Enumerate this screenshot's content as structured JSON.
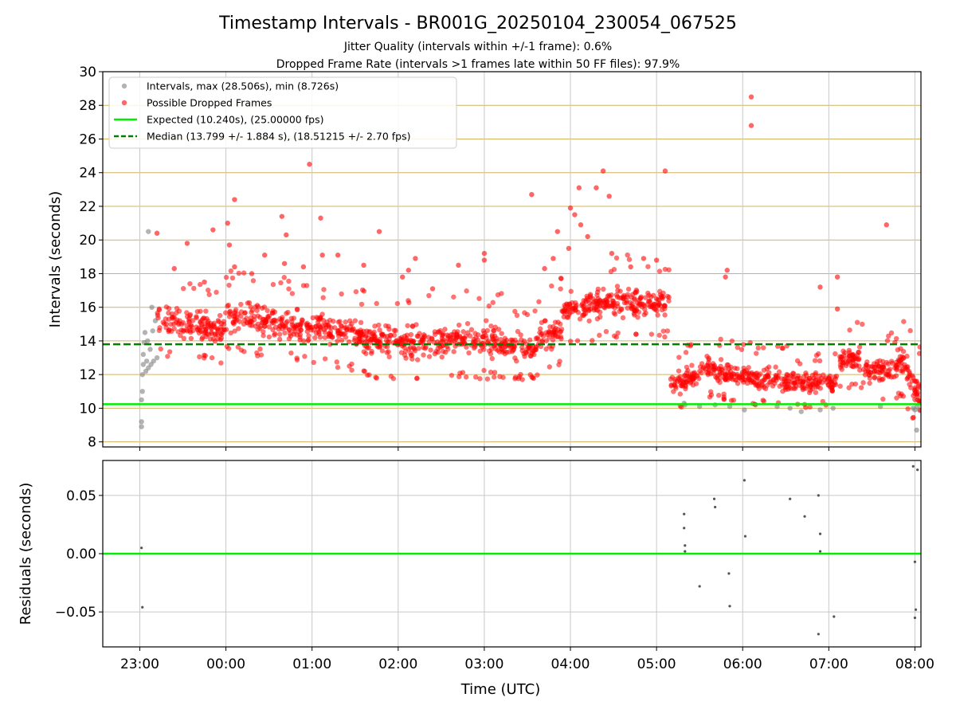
{
  "title": "Timestamp Intervals - BR001G_20250104_230054_067525",
  "subtitle_1": "Jitter Quality (intervals within +/-1 frame): 0.6%",
  "subtitle_2": "Dropped Frame Rate (intervals >1 frames late within 50 FF files): 97.9%",
  "colors": {
    "intervals": "#808080",
    "dropped": "#ff0000",
    "expected": "#00ee00",
    "median": "#008000",
    "hgrid": "#d2b35c",
    "vgrid": "#c8c8c8"
  },
  "chart_data": [
    {
      "type": "scatter",
      "name": "intervals",
      "xlabel": "",
      "ylabel": "Intervals (seconds)",
      "ylim": [
        7.7,
        30
      ],
      "yticks": [
        8,
        10,
        12,
        14,
        16,
        18,
        20,
        22,
        24,
        26,
        28,
        30
      ],
      "xlim_hours": [
        22.57,
        32.07
      ],
      "xticks": [
        {
          "h": 23,
          "label": "23:00"
        },
        {
          "h": 24,
          "label": "00:00"
        },
        {
          "h": 25,
          "label": "01:00"
        },
        {
          "h": 26,
          "label": "02:00"
        },
        {
          "h": 27,
          "label": "03:00"
        },
        {
          "h": 28,
          "label": "04:00"
        },
        {
          "h": 29,
          "label": "05:00"
        },
        {
          "h": 30,
          "label": "06:00"
        },
        {
          "h": 31,
          "label": "07:00"
        },
        {
          "h": 32,
          "label": "08:00"
        }
      ],
      "grid": "horizontal-and-vertical",
      "legend_position": "upper-left",
      "legend": [
        {
          "key": "intervals",
          "label": "Intervals, max (28.506s), min (8.726s)"
        },
        {
          "key": "dropped",
          "label": "Possible Dropped Frames"
        },
        {
          "key": "expected",
          "label": "Expected (10.240s), (25.00000 fps)"
        },
        {
          "key": "median",
          "label": "Median (13.799 +/- 1.884 s), (18.51215 +/- 2.70 fps)"
        }
      ],
      "expected": 10.24,
      "median": 13.799,
      "series": [
        {
          "name": "Intervals, max (28.506s), min (8.726s)",
          "marker": "gray",
          "points": [
            [
              23.02,
              8.9
            ],
            [
              23.02,
              9.2
            ],
            [
              23.02,
              10.5
            ],
            [
              23.03,
              11.0
            ],
            [
              23.03,
              12.0
            ],
            [
              23.04,
              12.6
            ],
            [
              23.04,
              13.2
            ],
            [
              23.05,
              13.9
            ],
            [
              23.06,
              14.5
            ],
            [
              23.07,
              12.2
            ],
            [
              23.08,
              12.8
            ],
            [
              23.09,
              14.0
            ],
            [
              23.1,
              12.4
            ],
            [
              23.1,
              20.5
            ],
            [
              23.12,
              13.5
            ],
            [
              23.13,
              12.6
            ],
            [
              23.14,
              16.0
            ],
            [
              23.15,
              14.6
            ],
            [
              23.16,
              12.8
            ],
            [
              23.18,
              15.2
            ],
            [
              23.2,
              13.0
            ],
            [
              29.32,
              10.3
            ],
            [
              29.33,
              10.2
            ],
            [
              29.5,
              10.1
            ],
            [
              29.68,
              10.2
            ],
            [
              29.85,
              10.1
            ],
            [
              30.02,
              9.9
            ],
            [
              30.15,
              10.2
            ],
            [
              30.4,
              10.1
            ],
            [
              30.55,
              10.0
            ],
            [
              30.68,
              9.8
            ],
            [
              30.9,
              9.9
            ],
            [
              31.05,
              10.0
            ],
            [
              31.6,
              10.1
            ],
            [
              31.98,
              10.0
            ],
            [
              32.0,
              9.9
            ],
            [
              32.02,
              8.7
            ],
            [
              32.03,
              10.1
            ],
            [
              32.05,
              9.9
            ]
          ]
        },
        {
          "name": "Possible Dropped Frames",
          "marker": "red",
          "outliers": [
            [
              23.2,
              20.4
            ],
            [
              23.4,
              18.3
            ],
            [
              23.55,
              19.8
            ],
            [
              23.75,
              17.5
            ],
            [
              23.85,
              20.6
            ],
            [
              24.02,
              21.0
            ],
            [
              24.04,
              19.7
            ],
            [
              24.1,
              22.4
            ],
            [
              24.1,
              18.4
            ],
            [
              24.3,
              18.0
            ],
            [
              24.45,
              19.1
            ],
            [
              24.65,
              21.4
            ],
            [
              24.68,
              18.6
            ],
            [
              24.7,
              20.3
            ],
            [
              24.9,
              18.4
            ],
            [
              24.97,
              24.5
            ],
            [
              25.1,
              21.3
            ],
            [
              25.12,
              19.1
            ],
            [
              25.3,
              19.1
            ],
            [
              25.6,
              18.5
            ],
            [
              25.78,
              20.5
            ],
            [
              26.05,
              17.8
            ],
            [
              26.12,
              18.2
            ],
            [
              26.2,
              18.9
            ],
            [
              26.4,
              17.1
            ],
            [
              26.7,
              18.5
            ],
            [
              27.0,
              19.2
            ],
            [
              27.0,
              18.8
            ],
            [
              27.55,
              22.7
            ],
            [
              27.7,
              18.3
            ],
            [
              27.8,
              18.9
            ],
            [
              27.85,
              20.5
            ],
            [
              27.98,
              19.5
            ],
            [
              28.0,
              21.9
            ],
            [
              28.05,
              21.5
            ],
            [
              28.1,
              23.1
            ],
            [
              28.12,
              20.9
            ],
            [
              28.2,
              20.2
            ],
            [
              28.3,
              23.1
            ],
            [
              28.38,
              24.1
            ],
            [
              28.45,
              22.6
            ],
            [
              28.48,
              19.2
            ],
            [
              28.7,
              18.4
            ],
            [
              28.85,
              18.9
            ],
            [
              29.0,
              18.8
            ],
            [
              29.1,
              24.1
            ],
            [
              29.8,
              17.8
            ],
            [
              29.82,
              18.2
            ],
            [
              30.1,
              28.5
            ],
            [
              30.1,
              26.8
            ],
            [
              30.9,
              17.2
            ],
            [
              31.1,
              17.8
            ],
            [
              31.1,
              15.9
            ],
            [
              31.67,
              20.9
            ]
          ],
          "bands": [
            {
              "x0": 23.2,
              "x1": 24.0,
              "y0": 15.3,
              "y1": 14.7,
              "spread": 1.2,
              "n": 150
            },
            {
              "x0": 24.0,
              "x1": 25.0,
              "y0": 15.5,
              "y1": 14.8,
              "spread": 1.2,
              "n": 190
            },
            {
              "x0": 25.0,
              "x1": 25.6,
              "y0": 14.8,
              "y1": 14.3,
              "spread": 1.2,
              "n": 120
            },
            {
              "x0": 25.6,
              "x1": 26.6,
              "y0": 14.1,
              "y1": 13.8,
              "spread": 1.3,
              "n": 190
            },
            {
              "x0": 26.6,
              "x1": 27.2,
              "y0": 14.2,
              "y1": 14.0,
              "spread": 1.3,
              "n": 120
            },
            {
              "x0": 27.2,
              "x1": 27.6,
              "y0": 13.6,
              "y1": 13.7,
              "spread": 1.1,
              "n": 80
            },
            {
              "x0": 27.6,
              "x1": 27.9,
              "y0": 14.2,
              "y1": 14.8,
              "spread": 1.3,
              "n": 60
            },
            {
              "x0": 27.9,
              "x1": 28.6,
              "y0": 15.9,
              "y1": 16.4,
              "spread": 1.2,
              "n": 140
            },
            {
              "x0": 28.6,
              "x1": 29.15,
              "y0": 16.4,
              "y1": 16.3,
              "spread": 1.2,
              "n": 110
            },
            {
              "x0": 29.15,
              "x1": 29.5,
              "y0": 11.6,
              "y1": 11.8,
              "spread": 0.9,
              "n": 70
            },
            {
              "x0": 29.5,
              "x1": 30.0,
              "y0": 12.4,
              "y1": 11.9,
              "spread": 0.9,
              "n": 100
            },
            {
              "x0": 30.0,
              "x1": 30.6,
              "y0": 11.9,
              "y1": 11.6,
              "spread": 0.9,
              "n": 120
            },
            {
              "x0": 30.6,
              "x1": 31.1,
              "y0": 11.4,
              "y1": 11.6,
              "spread": 0.8,
              "n": 100
            },
            {
              "x0": 31.1,
              "x1": 31.4,
              "y0": 13.0,
              "y1": 12.8,
              "spread": 1.0,
              "n": 60
            },
            {
              "x0": 31.4,
              "x1": 31.8,
              "y0": 12.2,
              "y1": 12.4,
              "spread": 1.0,
              "n": 80
            },
            {
              "x0": 31.8,
              "x1": 32.07,
              "y0": 13.2,
              "y1": 10.6,
              "spread": 1.3,
              "n": 70
            }
          ]
        }
      ]
    },
    {
      "type": "scatter",
      "name": "residuals",
      "xlabel": "Time (UTC)",
      "ylabel": "Residuals (seconds)",
      "ylim": [
        -0.08,
        0.08
      ],
      "yticks": [
        {
          "v": 0.05,
          "label": "0.05"
        },
        {
          "v": 0.0,
          "label": "0.00"
        },
        {
          "v": -0.05,
          "label": "−0.05"
        }
      ],
      "zero_line": 0.0,
      "points": [
        [
          23.02,
          0.005
        ],
        [
          23.03,
          -0.046
        ],
        [
          29.32,
          0.034
        ],
        [
          29.32,
          0.022
        ],
        [
          29.33,
          0.007
        ],
        [
          29.33,
          0.002
        ],
        [
          29.5,
          -0.028
        ],
        [
          29.67,
          0.047
        ],
        [
          29.68,
          0.04
        ],
        [
          29.84,
          -0.017
        ],
        [
          29.85,
          -0.045
        ],
        [
          30.02,
          0.063
        ],
        [
          30.03,
          0.015
        ],
        [
          30.55,
          0.047
        ],
        [
          30.72,
          0.032
        ],
        [
          30.88,
          0.05
        ],
        [
          30.9,
          0.017
        ],
        [
          30.9,
          0.002
        ],
        [
          30.88,
          -0.069
        ],
        [
          31.06,
          -0.054
        ],
        [
          31.98,
          0.075
        ],
        [
          32.03,
          0.072
        ],
        [
          32.0,
          -0.007
        ],
        [
          32.01,
          -0.048
        ],
        [
          32.0,
          -0.055
        ]
      ]
    }
  ]
}
